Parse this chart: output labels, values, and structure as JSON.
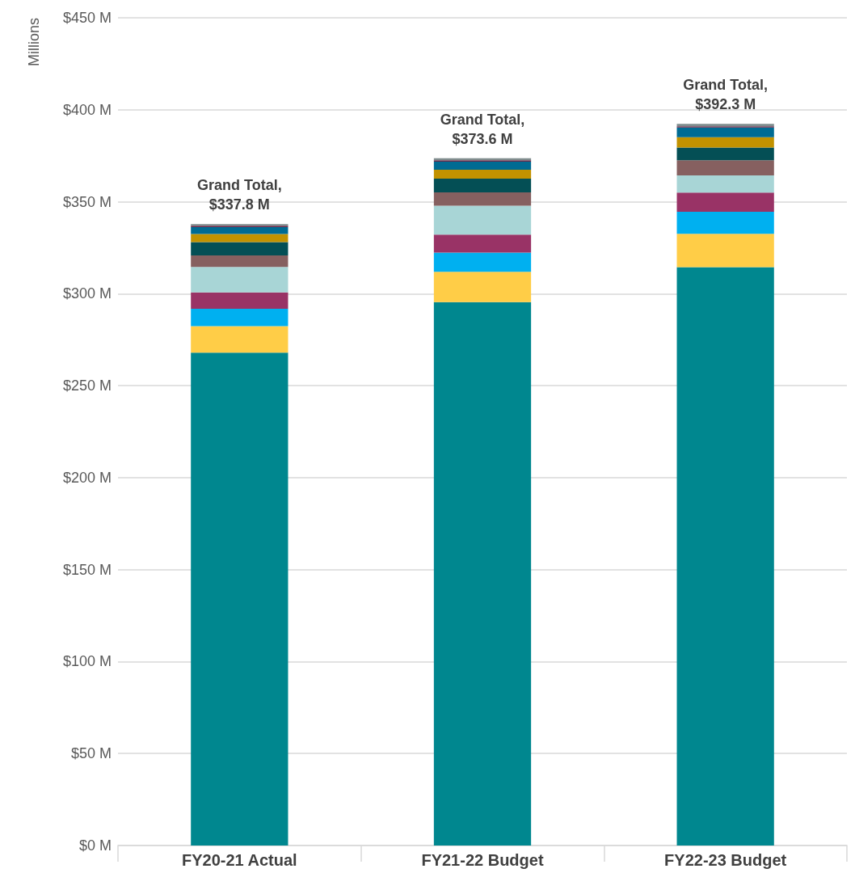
{
  "chart_data": {
    "type": "bar",
    "stacked": true,
    "ylabel": "Millions",
    "categories": [
      "FY20-21 Actual",
      "FY21-22 Budget",
      "FY22-23 Budget"
    ],
    "series": [
      {
        "color": "#00878f",
        "values": [
          268.0,
          295.4,
          314.4
        ]
      },
      {
        "color": "#ffcd47",
        "values": [
          14.4,
          16.5,
          18.2
        ]
      },
      {
        "color": "#00b0f0",
        "values": [
          9.4,
          10.4,
          11.9
        ]
      },
      {
        "color": "#993366",
        "values": [
          8.9,
          9.8,
          10.5
        ]
      },
      {
        "color": "#a8d5d6",
        "values": [
          13.8,
          15.7,
          9.3
        ]
      },
      {
        "color": "#866060",
        "values": [
          6.3,
          7.3,
          8.2
        ]
      },
      {
        "color": "#044f55",
        "values": [
          7.2,
          7.5,
          7.0
        ]
      },
      {
        "color": "#c29200",
        "values": [
          4.5,
          4.8,
          5.6
        ]
      },
      {
        "color": "#006b93",
        "values": [
          3.7,
          4.4,
          5.2
        ]
      },
      {
        "color": "#6b2a4c",
        "values": [
          0.7,
          0.7,
          0.7
        ]
      },
      {
        "color": "#7f8c8d",
        "values": [
          0.9,
          1.1,
          1.3
        ]
      }
    ],
    "totals": [
      "Grand Total,\n$337.8 M",
      "Grand Total,\n$373.6 M",
      "Grand Total,\n$392.3 M"
    ],
    "ylim": [
      0,
      450
    ],
    "yticks": [
      {
        "value": 0,
        "label": "$0 M"
      },
      {
        "value": 50,
        "label": "$50 M"
      },
      {
        "value": 100,
        "label": "$100 M"
      },
      {
        "value": 150,
        "label": "$150 M"
      },
      {
        "value": 200,
        "label": "$200 M"
      },
      {
        "value": 250,
        "label": "$250 M"
      },
      {
        "value": 300,
        "label": "$300 M"
      },
      {
        "value": 350,
        "label": "$350 M"
      },
      {
        "value": 400,
        "label": "$400 M"
      },
      {
        "value": 450,
        "label": "$450 M"
      }
    ],
    "grid": "y"
  }
}
